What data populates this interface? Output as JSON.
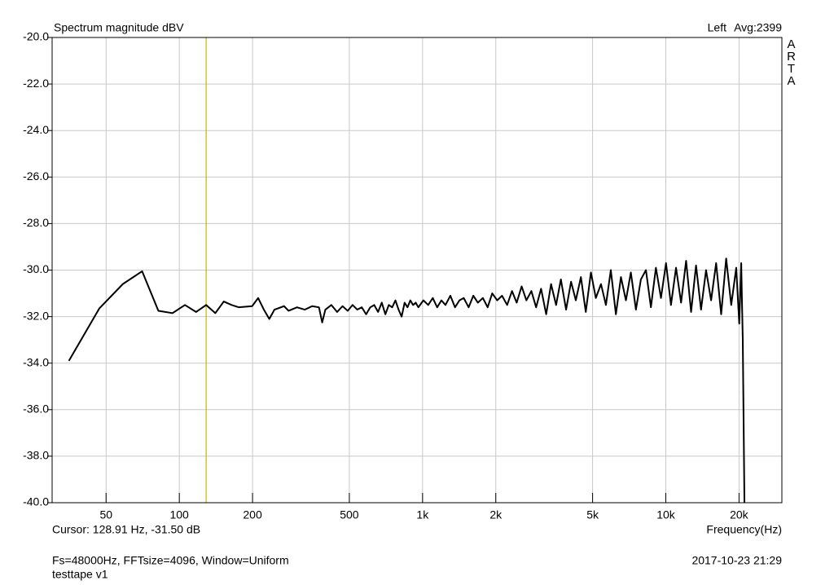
{
  "chart_data": {
    "type": "line",
    "title": "Spectrum magnitude dBV",
    "channel_info": "Avg:2399",
    "side_label": "ARTA",
    "x_label": "Frequency(Hz)",
    "footer_left": [
      "Fs=48000Hz, FFTsize=4096, Window=Uniform",
      "testtape v1"
    ],
    "footer_right": "2017-10-23  21:29",
    "cursor": {
      "x": 128.91,
      "label": "Cursor: 128.91 Hz, -31.50 dB",
      "color": "#c8b400"
    },
    "x_scale": "log",
    "grid": true,
    "xlim": [
      30,
      30000
    ],
    "ylim": [
      -40,
      -20
    ],
    "xticks": [
      50,
      100,
      200,
      500,
      {
        "value": 1000,
        "label": "1k"
      },
      {
        "value": 2000,
        "label": "2k"
      },
      {
        "value": 5000,
        "label": "5k"
      },
      {
        "value": 10000,
        "label": "10k"
      },
      {
        "value": 20000,
        "label": "20k"
      }
    ],
    "yticks": [
      {
        "value": -20,
        "label": "-20.0"
      },
      {
        "value": -22,
        "label": "-22.0"
      },
      {
        "value": -24,
        "label": "-24.0"
      },
      {
        "value": -26,
        "label": "-26.0"
      },
      {
        "value": -28,
        "label": "-28.0"
      },
      {
        "value": -30,
        "label": "-30.0"
      },
      {
        "value": -32,
        "label": "-32.0"
      },
      {
        "value": -34,
        "label": "-34.0"
      },
      {
        "value": -36,
        "label": "-36.0"
      },
      {
        "value": -38,
        "label": "-38.0"
      },
      {
        "value": -40,
        "label": "-40.0"
      }
    ],
    "x": [
      35.16,
      46.88,
      58.59,
      70.31,
      82.03,
      93.75,
      105.47,
      117.19,
      128.91,
      140.63,
      152.34,
      164.06,
      175.78,
      199.22,
      210.94,
      222.66,
      234.38,
      246.09,
      269.53,
      281.25,
      304.69,
      328.13,
      351.56,
      375.0,
      386.72,
      398.44,
      421.88,
      445.31,
      468.75,
      492.19,
      515.63,
      539.06,
      562.5,
      585.94,
      609.38,
      632.81,
      656.25,
      679.69,
      703.13,
      726.56,
      750.0,
      773.44,
      796.88,
      820.31,
      843.75,
      867.19,
      890.63,
      914.06,
      937.5,
      960.94,
      1007.81,
      1054.69,
      1101.56,
      1148.44,
      1195.31,
      1242.19,
      1300.78,
      1359.38,
      1417.97,
      1476.56,
      1546.88,
      1617.19,
      1687.5,
      1769.53,
      1851.56,
      1933.59,
      2027.34,
      2121.09,
      2226.56,
      2332.03,
      2437.5,
      2554.69,
      2671.88,
      2800.78,
      2929.69,
      3070.31,
      3222.66,
      3375.0,
      3539.06,
      3703.13,
      3890.63,
      4078.13,
      4265.63,
      4476.56,
      4687.5,
      4921.88,
      5156.25,
      5414.06,
      5671.88,
      5941.41,
      6234.38,
      6539.06,
      6855.47,
      7183.59,
      7535.16,
      7898.44,
      8285.16,
      8683.59,
      9105.47,
      9550.78,
      10019.53,
      10500.0,
      11015.63,
      11554.69,
      12117.19,
      12703.13,
      13312.5,
      13957.03,
      14636.72,
      15351.56,
      16101.56,
      16886.72,
      17707.03,
      18574.22,
      19476.56,
      20039.06,
      20414.06,
      20578.13,
      20718.75,
      20835.94,
      20953.13,
      21046.88
    ],
    "series": [
      {
        "name": "Left",
        "color": "#000000",
        "values": [
          -33.9,
          -31.65,
          -30.6,
          -30.05,
          -31.75,
          -31.85,
          -31.5,
          -31.8,
          -31.5,
          -31.85,
          -31.35,
          -31.5,
          -31.6,
          -31.55,
          -31.2,
          -31.7,
          -32.1,
          -31.7,
          -31.55,
          -31.75,
          -31.6,
          -31.7,
          -31.55,
          -31.6,
          -32.25,
          -31.7,
          -31.5,
          -31.8,
          -31.55,
          -31.75,
          -31.5,
          -31.7,
          -31.6,
          -31.9,
          -31.6,
          -31.5,
          -31.8,
          -31.4,
          -31.9,
          -31.5,
          -31.6,
          -31.3,
          -31.7,
          -32.0,
          -31.4,
          -31.6,
          -31.3,
          -31.5,
          -31.4,
          -31.6,
          -31.3,
          -31.5,
          -31.2,
          -31.6,
          -31.3,
          -31.5,
          -31.1,
          -31.6,
          -31.3,
          -31.2,
          -31.6,
          -31.1,
          -31.4,
          -31.2,
          -31.6,
          -31.0,
          -31.3,
          -31.1,
          -31.5,
          -30.9,
          -31.4,
          -30.7,
          -31.3,
          -30.9,
          -31.6,
          -30.8,
          -31.9,
          -30.6,
          -31.5,
          -30.4,
          -31.7,
          -30.5,
          -31.3,
          -30.3,
          -31.8,
          -30.1,
          -31.2,
          -30.6,
          -31.5,
          -30.0,
          -31.9,
          -30.3,
          -31.3,
          -30.1,
          -31.7,
          -30.4,
          -30.0,
          -31.6,
          -29.9,
          -31.2,
          -29.7,
          -31.5,
          -29.9,
          -31.4,
          -29.6,
          -31.8,
          -29.8,
          -31.7,
          -30.0,
          -31.3,
          -29.7,
          -31.9,
          -29.5,
          -31.5,
          -29.9,
          -32.3,
          -29.7,
          -31.5,
          -33.0,
          -35.5,
          -38.0,
          -40.0
        ]
      }
    ]
  }
}
